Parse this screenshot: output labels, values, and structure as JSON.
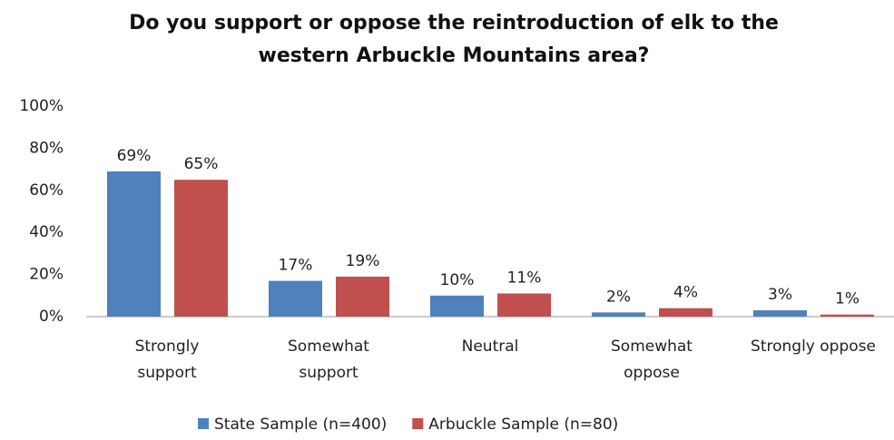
{
  "chart_data": {
    "type": "bar",
    "title": "Do you support or oppose the reintroduction of elk to the western Arbuckle Mountains area?",
    "categories": [
      "Strongly\nsupport",
      "Somewhat\nsupport",
      "Neutral",
      "Somewhat\noppose",
      "Strongly oppose"
    ],
    "series": [
      {
        "name": "State Sample (n=400)",
        "color": "#4f81bd",
        "values": [
          69,
          17,
          10,
          2,
          3
        ],
        "value_labels": [
          "69%",
          "17%",
          "10%",
          "2%",
          "3%"
        ]
      },
      {
        "name": "Arbuckle Sample (n=80)",
        "color": "#c0504d",
        "values": [
          65,
          19,
          11,
          4,
          1
        ],
        "value_labels": [
          "65%",
          "19%",
          "11%",
          "4%",
          "1%"
        ]
      }
    ],
    "ylim": [
      0,
      100
    ],
    "yticks": [
      {
        "value": 0,
        "label": "0%"
      },
      {
        "value": 20,
        "label": "20%"
      },
      {
        "value": 40,
        "label": "40%"
      },
      {
        "value": 60,
        "label": "60%"
      },
      {
        "value": 80,
        "label": "80%"
      },
      {
        "value": 100,
        "label": "100%"
      }
    ],
    "legend": "bottom"
  }
}
